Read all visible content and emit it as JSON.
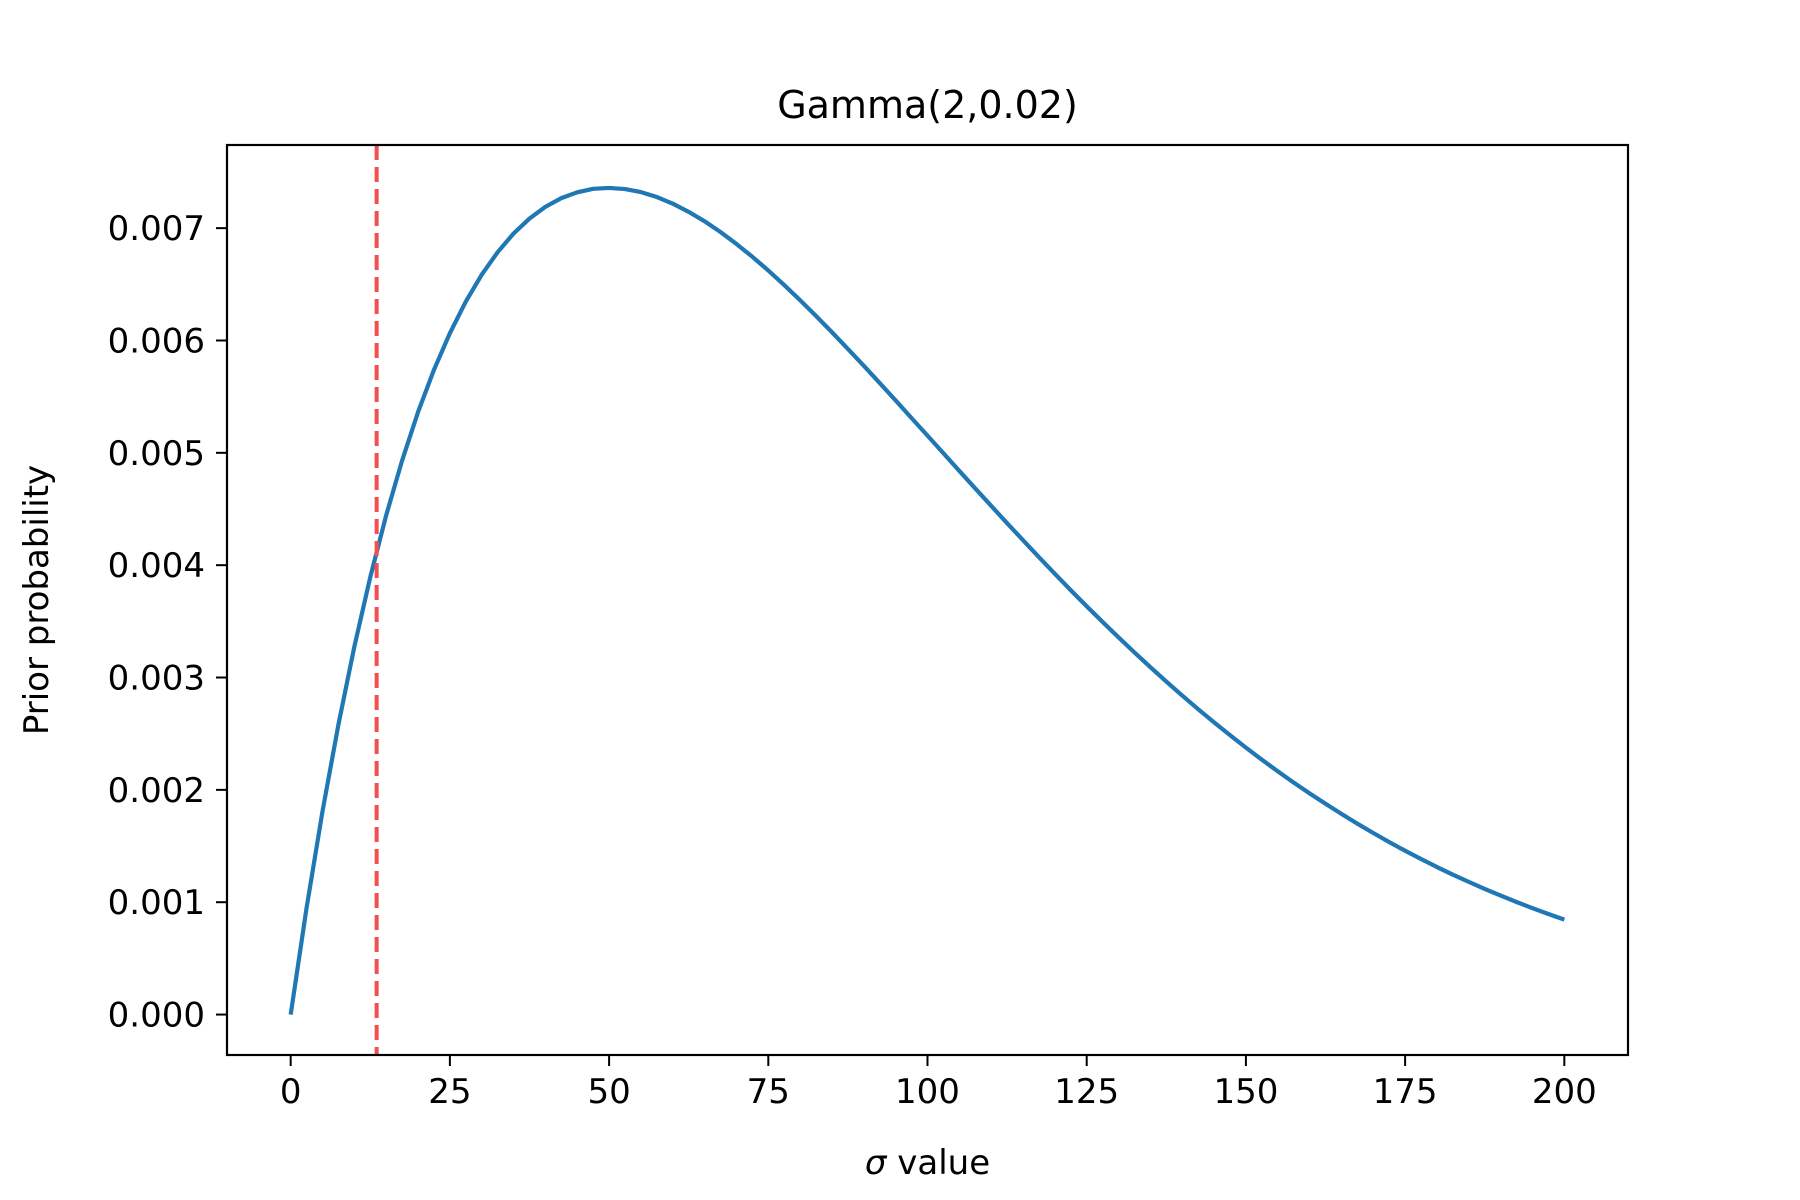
{
  "chart_data": {
    "type": "line",
    "title": "Gamma(2,0.02)",
    "xlabel_symbol": "σ",
    "xlabel_rest": " value",
    "ylabel": "Prior probability",
    "xlim": [
      -10,
      210
    ],
    "ylim": [
      -0.00036,
      0.00774
    ],
    "grid": false,
    "legend": "none",
    "x_ticks": [
      0,
      25,
      50,
      75,
      100,
      125,
      150,
      175,
      200
    ],
    "x_tick_labels": [
      "0",
      "25",
      "50",
      "75",
      "100",
      "125",
      "150",
      "175",
      "200"
    ],
    "y_ticks": [
      0.0,
      0.001,
      0.002,
      0.003,
      0.004,
      0.005,
      0.006,
      0.007
    ],
    "y_tick_labels": [
      "0.000",
      "0.001",
      "0.002",
      "0.003",
      "0.004",
      "0.005",
      "0.006",
      "0.007"
    ],
    "series": [
      {
        "color": "#1f77b4",
        "x": [
          0,
          2.5,
          5,
          7.5,
          10,
          12.5,
          15,
          17.5,
          20,
          22.5,
          25,
          27.5,
          30,
          32.5,
          35,
          37.5,
          40,
          42.5,
          45,
          47.5,
          50,
          52.5,
          55,
          57.5,
          60,
          62.5,
          65,
          67.5,
          70,
          72.5,
          75,
          77.5,
          80,
          82.5,
          85,
          87.5,
          90,
          92.5,
          95,
          97.5,
          100,
          102.5,
          105,
          107.5,
          110,
          112.5,
          115,
          117.5,
          120,
          122.5,
          125,
          127.5,
          130,
          132.5,
          135,
          137.5,
          140,
          142.5,
          145,
          147.5,
          150,
          152.5,
          155,
          157.5,
          160,
          162.5,
          165,
          167.5,
          170,
          172.5,
          175,
          177.5,
          180,
          182.5,
          185,
          187.5,
          190,
          192.5,
          195,
          197.5,
          200
        ],
        "y": [
          0.0,
          0.000951,
          0.00181,
          0.002582,
          0.003275,
          0.003894,
          0.004445,
          0.004932,
          0.005363,
          0.005739,
          0.006065,
          0.006346,
          0.006586,
          0.006786,
          0.006952,
          0.007085,
          0.00719,
          0.007267,
          0.007319,
          0.00735,
          0.007358,
          0.007348,
          0.007321,
          0.007277,
          0.007218,
          0.007145,
          0.007061,
          0.006965,
          0.006859,
          0.006745,
          0.006623,
          0.006493,
          0.006358,
          0.006218,
          0.006073,
          0.005925,
          0.005774,
          0.005621,
          0.005466,
          0.005309,
          0.005153,
          0.004996,
          0.004839,
          0.004683,
          0.004528,
          0.004374,
          0.004222,
          0.004071,
          0.003923,
          0.003777,
          0.003634,
          0.003494,
          0.003357,
          0.003223,
          0.003092,
          0.002964,
          0.002839,
          0.002718,
          0.002601,
          0.002487,
          0.002376,
          0.002269,
          0.002165,
          0.002065,
          0.001969,
          0.001876,
          0.001786,
          0.001699,
          0.001616,
          0.001535,
          0.001458,
          0.001385,
          0.001313,
          0.001245,
          0.001181,
          0.001118,
          0.001059,
          0.001002,
          0.000947,
          0.000895,
          0.000845
        ]
      }
    ],
    "reference_line": {
      "x": 13.5,
      "color": "#f44e4e",
      "style": "dashed"
    }
  }
}
